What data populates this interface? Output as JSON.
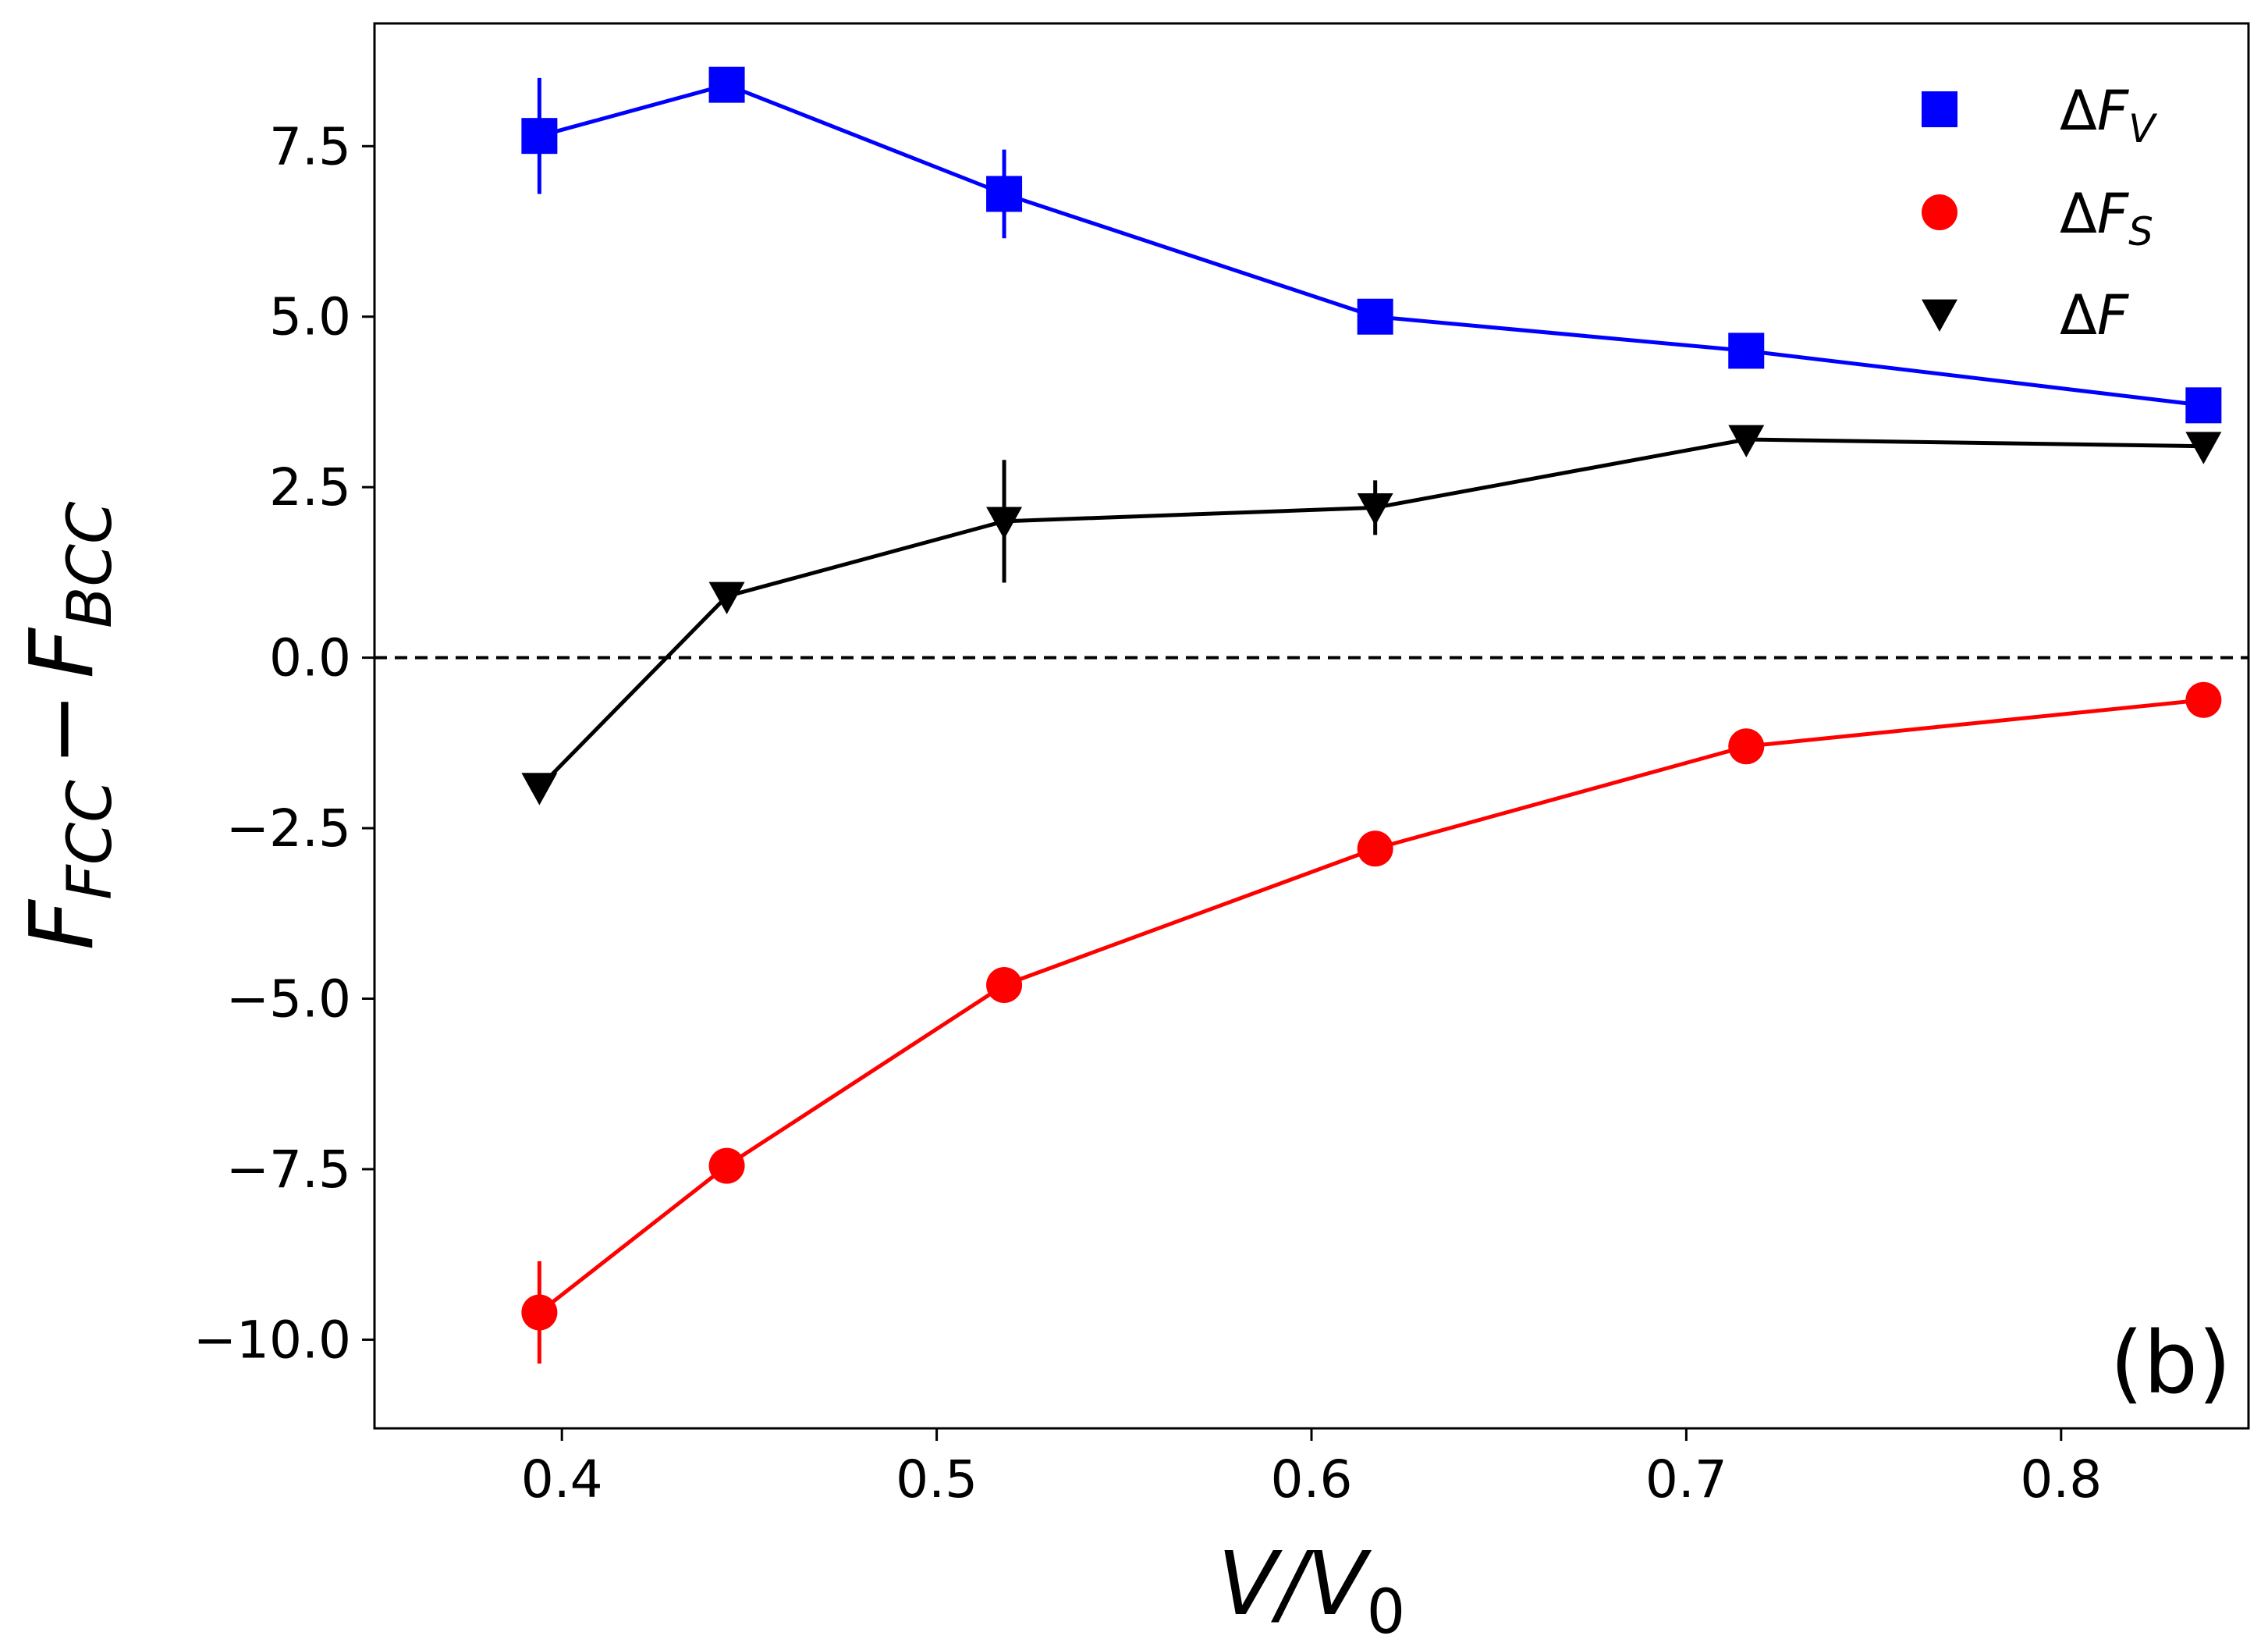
{
  "chart_data": {
    "type": "line",
    "title": "",
    "xlabel": "V/V0",
    "xlabel_parts": {
      "main": "V/V",
      "sub": "0"
    },
    "ylabel": "F_FCC - F_BCC",
    "ylabel_parts": {
      "f1": "F",
      "sub1": "FCC",
      "minus": "−",
      "f2": "F",
      "sub2": "BCC"
    },
    "xlim": [
      0.35,
      0.85
    ],
    "ylim": [
      -11.3,
      9.3
    ],
    "xticks": [
      0.4,
      0.5,
      0.6,
      0.7,
      0.8
    ],
    "xtick_labels": [
      "0.4",
      "0.5",
      "0.6",
      "0.7",
      "0.8"
    ],
    "yticks": [
      -10.0,
      -7.5,
      -5.0,
      -2.5,
      0.0,
      2.5,
      5.0,
      7.5
    ],
    "ytick_labels": [
      "−10.0",
      "−7.5",
      "−5.0",
      "−2.5",
      "0.0",
      "2.5",
      "5.0",
      "7.5"
    ],
    "reference_line": {
      "y": 0.0,
      "style": "dashed",
      "color": "#000000"
    },
    "annotation": "(b)",
    "legend_position": "top-right",
    "x": [
      0.394,
      0.444,
      0.518,
      0.617,
      0.716,
      0.838
    ],
    "series": [
      {
        "name": "ΔF_V",
        "legend_main": "ΔF",
        "legend_sub": "V",
        "color": "#0000ff",
        "marker": "square",
        "values": [
          7.65,
          8.4,
          6.8,
          5.0,
          4.5,
          3.7
        ],
        "errors": [
          0.85,
          0.1,
          0.65,
          0.15,
          0.1,
          0.1
        ]
      },
      {
        "name": "ΔF_S",
        "legend_main": "ΔF",
        "legend_sub": "S",
        "color": "#ff0000",
        "marker": "circle",
        "values": [
          -9.6,
          -7.45,
          -4.8,
          -2.8,
          -1.3,
          -0.62
        ],
        "errors": [
          0.75,
          0.1,
          0.1,
          0.1,
          0.1,
          0.1
        ]
      },
      {
        "name": "ΔF",
        "legend_main": "ΔF",
        "legend_sub": "",
        "color": "#000000",
        "marker": "triangle-down",
        "values": [
          -1.9,
          0.9,
          2.0,
          2.2,
          3.2,
          3.1
        ],
        "errors": [
          0.1,
          0.1,
          0.9,
          0.4,
          0.1,
          0.1
        ]
      }
    ]
  }
}
